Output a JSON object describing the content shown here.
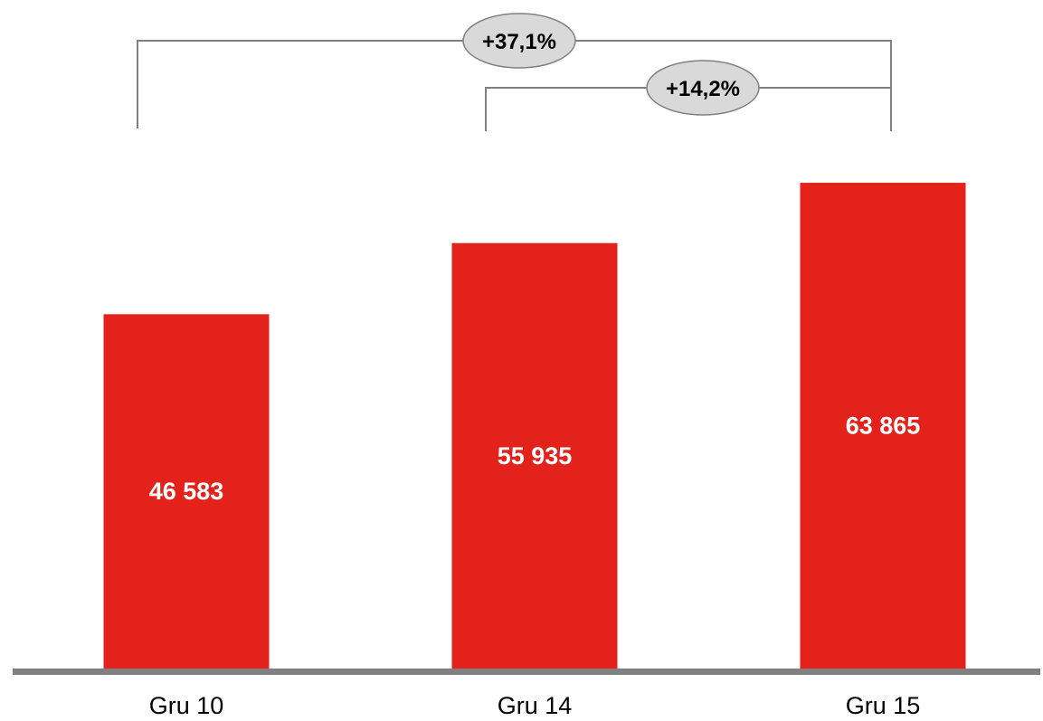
{
  "chart_data": {
    "type": "bar",
    "categories": [
      "Gru 10",
      "Gru 14",
      "Gru 15"
    ],
    "values": [
      46583,
      55935,
      63865
    ],
    "value_labels": [
      "46 583",
      "55 935",
      "63 865"
    ],
    "title": "",
    "xlabel": "",
    "ylabel": "",
    "ylim": [
      0,
      76000
    ],
    "grid": false,
    "legend": "none",
    "bar_color": "#e3221c",
    "axis_color": "#808080",
    "annotations": [
      {
        "from": "Gru 10",
        "to": "Gru 15",
        "text": "+37,1%"
      },
      {
        "from": "Gru 14",
        "to": "Gru 15",
        "text": "+14,2%"
      }
    ]
  },
  "colors": {
    "bracket": "#808080",
    "bubble_fill": "#d9d9d9",
    "bubble_stroke": "#808080"
  }
}
